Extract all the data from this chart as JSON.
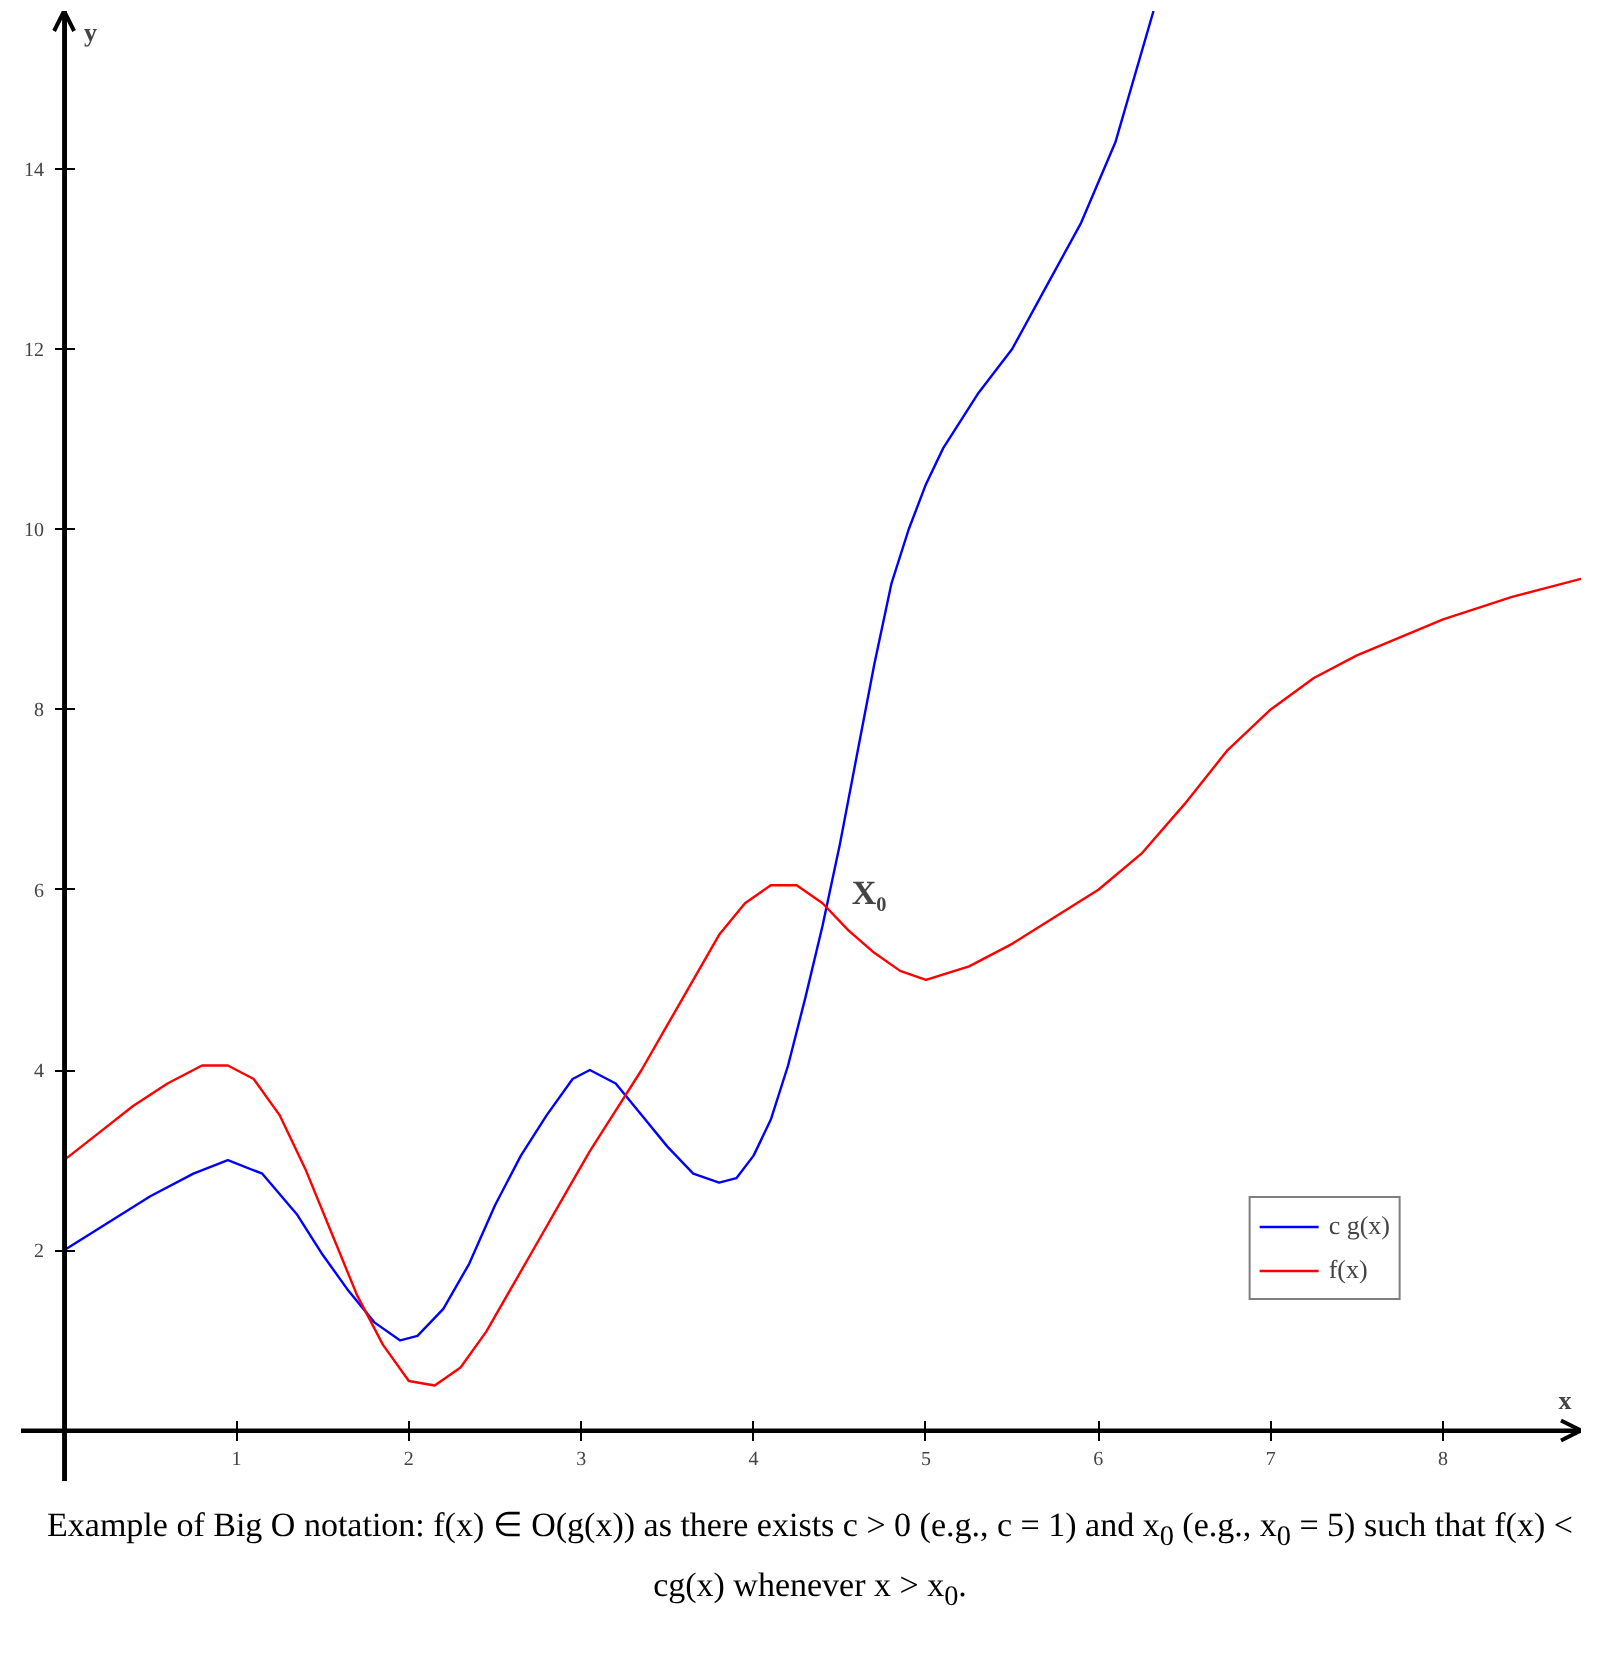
{
  "chart_data": {
    "type": "line",
    "xlabel": "x",
    "ylabel": "y",
    "xlim": [
      -0.25,
      8.8
    ],
    "ylim": [
      -0.56,
      15.75
    ],
    "xticks": [
      1,
      2,
      3,
      4,
      5,
      6,
      7,
      8
    ],
    "yticks": [
      2,
      4,
      6,
      8,
      10,
      12,
      14
    ],
    "grid": false,
    "legend": "bottom right",
    "marker": "none",
    "line_style": "solid",
    "series": [
      {
        "name": "c g(x)",
        "color": "#0000ff",
        "x": [
          0,
          0.25,
          0.5,
          0.75,
          0.95,
          1.15,
          1.35,
          1.5,
          1.65,
          1.8,
          1.95,
          2.05,
          2.2,
          2.35,
          2.5,
          2.65,
          2.8,
          2.95,
          3.05,
          3.2,
          3.35,
          3.5,
          3.65,
          3.8,
          3.9,
          4.0,
          4.1,
          4.2,
          4.3,
          4.4,
          4.5,
          4.6,
          4.7,
          4.8,
          4.9,
          5.0,
          5.1,
          5.3,
          5.5,
          5.7,
          5.9,
          6.1,
          6.32
        ],
        "values": [
          2,
          2.3,
          2.6,
          2.85,
          3.0,
          2.85,
          2.4,
          1.95,
          1.55,
          1.2,
          1.0,
          1.05,
          1.35,
          1.85,
          2.5,
          3.05,
          3.5,
          3.9,
          4.0,
          3.85,
          3.5,
          3.15,
          2.85,
          2.75,
          2.8,
          3.05,
          3.45,
          4.05,
          4.8,
          5.6,
          6.5,
          7.5,
          8.5,
          9.4,
          10.0,
          10.5,
          10.9,
          11.5,
          12.0,
          12.7,
          13.4,
          14.3,
          15.75
        ]
      },
      {
        "name": "f(x)",
        "color": "#ff0000",
        "x": [
          0,
          0.2,
          0.4,
          0.6,
          0.8,
          0.95,
          1.1,
          1.25,
          1.4,
          1.55,
          1.7,
          1.85,
          2.0,
          2.15,
          2.3,
          2.45,
          2.6,
          2.75,
          2.9,
          3.05,
          3.2,
          3.35,
          3.5,
          3.65,
          3.8,
          3.95,
          4.1,
          4.25,
          4.4,
          4.55,
          4.7,
          4.85,
          5.0,
          5.25,
          5.5,
          5.75,
          6.0,
          6.25,
          6.5,
          6.75,
          7.0,
          7.25,
          7.5,
          7.75,
          8.0,
          8.4,
          8.8
        ],
        "values": [
          3,
          3.3,
          3.6,
          3.85,
          4.05,
          4.05,
          3.9,
          3.5,
          2.9,
          2.2,
          1.5,
          0.95,
          0.55,
          0.5,
          0.7,
          1.1,
          1.6,
          2.1,
          2.6,
          3.1,
          3.55,
          4.0,
          4.5,
          5.0,
          5.5,
          5.85,
          6.05,
          6.05,
          5.85,
          5.55,
          5.3,
          5.1,
          5.0,
          5.15,
          5.4,
          5.7,
          6.0,
          6.4,
          6.95,
          7.55,
          8.0,
          8.35,
          8.6,
          8.8,
          9.0,
          9.25,
          9.45
        ]
      }
    ],
    "annotations": [
      {
        "text": "X₀",
        "x": 4.5,
        "y": 5.75
      },
      "Example of Big O notation: f(x) ∈ O(g(x)) as there exists c > 0 (e.g., c = 1) and x$_{0}$ (e.g., x$_{0}$ = 5) such that f(x) < cg(x) whenever x > x$_{0}$."
    ]
  }
}
